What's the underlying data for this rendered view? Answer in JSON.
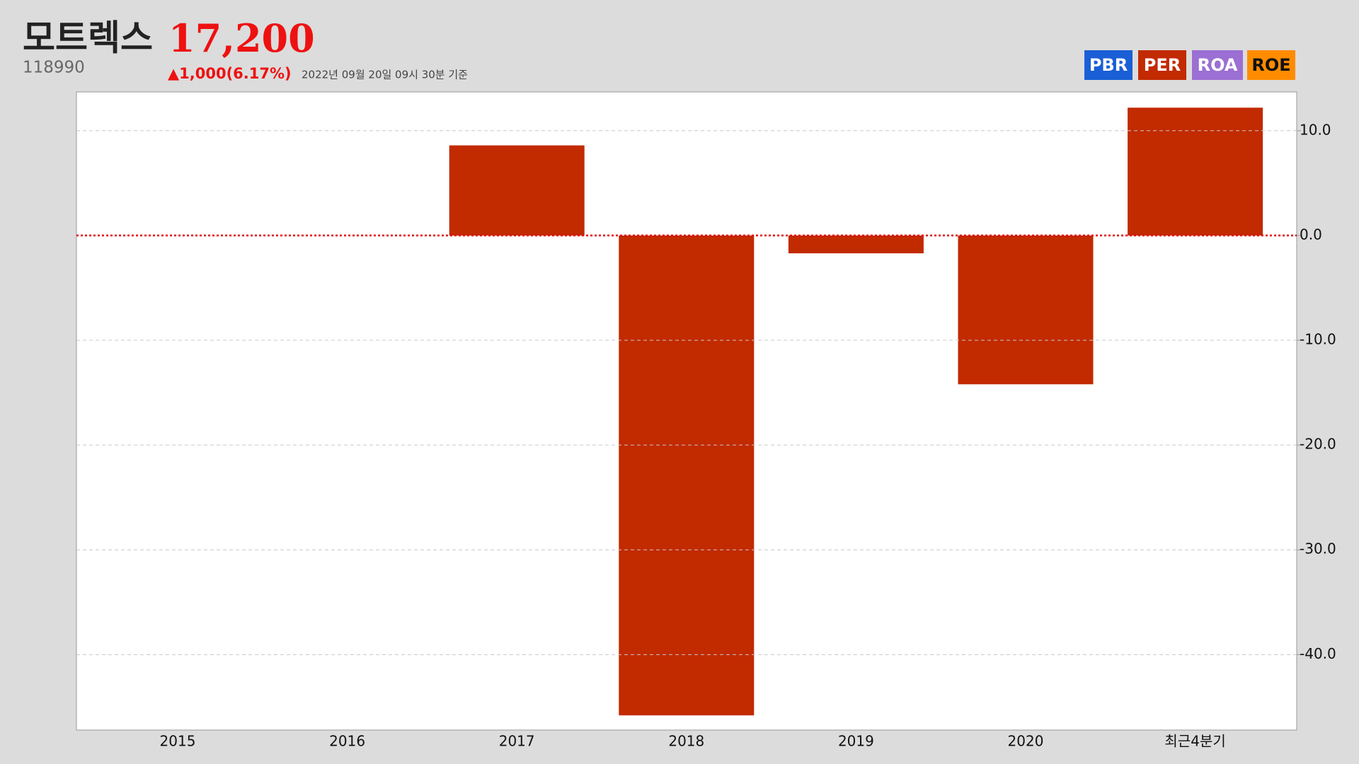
{
  "header": {
    "name": "모트렉스",
    "price": "17,200",
    "code": "118990",
    "change": "▲1,000(6.17%)",
    "timestamp": "2022년 09월 20일 09시 30분 기준"
  },
  "buttons": [
    {
      "label": "PBR",
      "color": "#1a5fd6"
    },
    {
      "label": "PER",
      "color": "#c22a00"
    },
    {
      "label": "ROA",
      "color": "#9b6fd3"
    },
    {
      "label": "ROE",
      "color": "#ff8c00"
    }
  ],
  "chart_data": {
    "type": "bar",
    "categories": [
      "2015",
      "2016",
      "2017",
      "2018",
      "2019",
      "2020",
      "최근4분기"
    ],
    "values": [
      null,
      null,
      8.6,
      -45.8,
      -1.7,
      -14.2,
      12.2
    ],
    "color": "#c22a00",
    "ylim": [
      -47.2,
      13.7
    ],
    "yticks": [
      {
        "value": 10,
        "label": "10.0"
      },
      {
        "value": 0,
        "label": "0.0"
      },
      {
        "value": -10,
        "label": "-10.0"
      },
      {
        "value": -20,
        "label": "-20.0"
      },
      {
        "value": -30,
        "label": "-30.0"
      },
      {
        "value": -40,
        "label": "-40.0"
      }
    ],
    "grid": true
  }
}
